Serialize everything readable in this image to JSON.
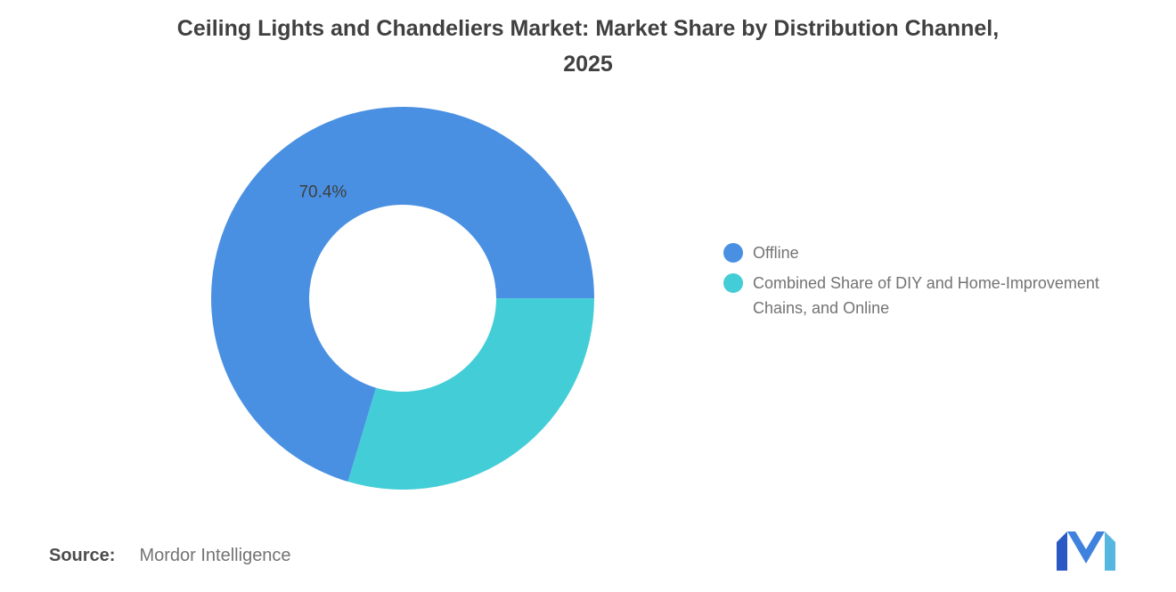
{
  "title": {
    "line1": "Ceiling Lights and Chandeliers Market: Market Share by Distribution Channel,",
    "line2": "2025"
  },
  "legend": {
    "items": [
      {
        "label": "Offline"
      },
      {
        "label": "Combined Share of DIY and Home-Improvement Chains, and Online"
      }
    ]
  },
  "source": {
    "label": "Source:",
    "value": "Mordor Intelligence"
  },
  "chart_data": {
    "type": "pie",
    "subtype": "donut",
    "title": "Ceiling Lights and Chandeliers Market: Market Share by Distribution Channel, 2025",
    "categories": [
      "Offline",
      "Combined Share of DIY and Home-Improvement Chains, and Online"
    ],
    "values": [
      70.4,
      29.6
    ],
    "colors": [
      "#4A90E2",
      "#43CDD6"
    ],
    "data_labels": [
      "70.4%",
      ""
    ],
    "start_angle_deg": 196.6,
    "legend_position": "right",
    "hole_ratio": 0.49
  }
}
